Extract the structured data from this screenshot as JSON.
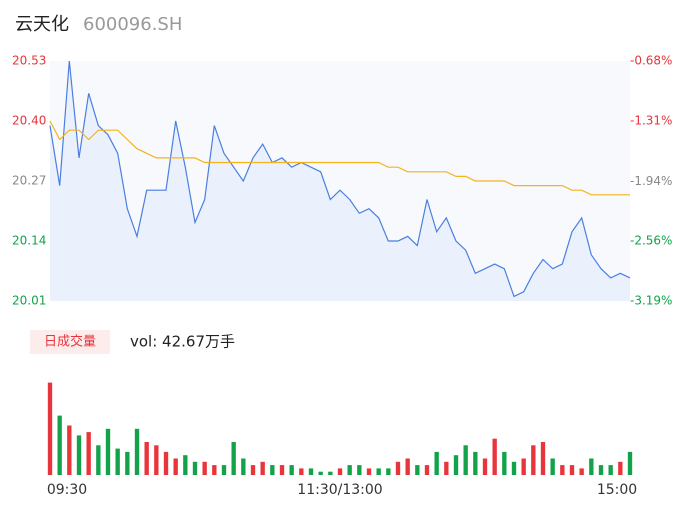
{
  "chart_data": {
    "type": "line",
    "title": "云天化",
    "subtitle": "600096.SH",
    "x": [
      0,
      4,
      8,
      12,
      16,
      20,
      24,
      28,
      32,
      36,
      40,
      44,
      48,
      52,
      56,
      60,
      64,
      68,
      72,
      76,
      80,
      84,
      88,
      92,
      96,
      100,
      104,
      108,
      112,
      116,
      120,
      124,
      128,
      132,
      136,
      140,
      144,
      148,
      152,
      156,
      160,
      164,
      168,
      172,
      176,
      180,
      184,
      188,
      192,
      196,
      200,
      204,
      208,
      212,
      216,
      220,
      224,
      228,
      232,
      236,
      240
    ],
    "xlim": [
      0,
      240
    ],
    "xticks": [
      {
        "value": 0,
        "label": "09:30"
      },
      {
        "value": 120,
        "label": "11:30/13:00"
      },
      {
        "value": 240,
        "label": "15:00"
      }
    ],
    "ylim": [
      20.01,
      20.53
    ],
    "yticks": [
      20.01,
      20.14,
      {
        "value": 20.27,
        "label": "20.27"
      },
      {
        "value": 20.4,
        "label": "20.40"
      },
      20.53
    ],
    "y2lim": [
      -3.19,
      -0.68
    ],
    "y2ticks": [
      {
        "value": -3.19,
        "label": "-3.19%"
      },
      {
        "value": -2.56,
        "label": "-2.56%"
      },
      {
        "value": -1.94,
        "label": "-1.94%"
      },
      {
        "value": -1.31,
        "label": "-1.31%"
      },
      {
        "value": -0.68,
        "label": "-0.68%"
      }
    ],
    "up_color": "#e8353b",
    "down_color": "#12a34a",
    "flat_color": "#888888",
    "series": [
      {
        "name": "price",
        "color": "#4a7fe0",
        "values": [
          20.39,
          20.26,
          20.53,
          20.32,
          20.46,
          20.39,
          20.37,
          20.33,
          20.21,
          20.15,
          20.25,
          20.25,
          20.25,
          20.4,
          20.3,
          20.18,
          20.23,
          20.39,
          20.33,
          20.3,
          20.27,
          20.32,
          20.35,
          20.31,
          20.32,
          20.3,
          20.31,
          20.3,
          20.29,
          20.23,
          20.25,
          20.23,
          20.2,
          20.21,
          20.19,
          20.14,
          20.14,
          20.15,
          20.13,
          20.23,
          20.16,
          20.19,
          20.14,
          20.12,
          20.07,
          20.08,
          20.09,
          20.08,
          20.02,
          20.03,
          20.07,
          20.1,
          20.08,
          20.09,
          20.16,
          20.19,
          20.11,
          20.08,
          20.06,
          20.07,
          20.06
        ]
      },
      {
        "name": "average",
        "color": "#f5b31d",
        "values": [
          20.4,
          20.36,
          20.38,
          20.38,
          20.36,
          20.38,
          20.38,
          20.38,
          20.36,
          20.34,
          20.33,
          20.32,
          20.32,
          20.32,
          20.32,
          20.32,
          20.31,
          20.31,
          20.31,
          20.31,
          20.31,
          20.31,
          20.31,
          20.31,
          20.31,
          20.31,
          20.31,
          20.31,
          20.31,
          20.31,
          20.31,
          20.31,
          20.31,
          20.31,
          20.31,
          20.3,
          20.3,
          20.29,
          20.29,
          20.29,
          20.29,
          20.29,
          20.28,
          20.28,
          20.27,
          20.27,
          20.27,
          20.27,
          20.26,
          20.26,
          20.26,
          20.26,
          20.26,
          20.26,
          20.25,
          20.25,
          20.24,
          20.24,
          20.24,
          20.24,
          20.24
        ]
      }
    ],
    "volume": {
      "label": "日成交量",
      "total_label": "vol: 42.67万手",
      "ylim": [
        0,
        3
      ],
      "values": [
        2.8,
        1.8,
        1.5,
        1.2,
        1.3,
        0.9,
        1.4,
        0.8,
        0.7,
        1.4,
        1.0,
        0.9,
        0.7,
        0.5,
        0.6,
        0.4,
        0.4,
        0.3,
        0.3,
        1.0,
        0.5,
        0.3,
        0.4,
        0.3,
        0.3,
        0.3,
        0.2,
        0.2,
        0.1,
        0.1,
        0.2,
        0.3,
        0.3,
        0.2,
        0.2,
        0.2,
        0.4,
        0.5,
        0.3,
        0.3,
        0.7,
        0.4,
        0.6,
        0.9,
        0.7,
        0.5,
        1.1,
        0.7,
        0.4,
        0.5,
        0.9,
        1.0,
        0.5,
        0.3,
        0.3,
        0.2,
        0.5,
        0.3,
        0.3,
        0.4,
        0.7
      ]
    }
  }
}
